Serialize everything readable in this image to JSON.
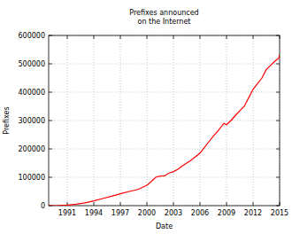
{
  "chart_data": {
    "type": "line",
    "title": "Prefixes announced\non the Internet",
    "x_label": "Date",
    "y_label": "Prefixes",
    "color": "#ff0000",
    "grid": true,
    "x": [
      1988.9,
      1990,
      1991,
      1992,
      1993,
      1994,
      1995,
      1996,
      1997,
      1998,
      1999,
      2000,
      2000.5,
      2001,
      2001.5,
      2002,
      2002.5,
      2003,
      2003.5,
      2004,
      2005,
      2006,
      2006.5,
      2007,
      2007.5,
      2008,
      2008.7,
      2009,
      2009.5,
      2010,
      2010.5,
      2011,
      2011.5,
      2012,
      2012.5,
      2013,
      2013.5,
      2014,
      2014.5,
      2014.9,
      2015
    ],
    "values": [
      0,
      500,
      2000,
      5000,
      10000,
      17000,
      25000,
      33000,
      42000,
      50000,
      57000,
      72000,
      85000,
      100000,
      104000,
      105000,
      115000,
      120000,
      128000,
      140000,
      160000,
      185000,
      205000,
      225000,
      245000,
      262000,
      290000,
      285000,
      300000,
      318000,
      335000,
      350000,
      380000,
      410000,
      430000,
      450000,
      480000,
      495000,
      510000,
      520000,
      532000
    ],
    "xlim": [
      1988.9,
      2015
    ],
    "ylim": [
      0,
      600000
    ],
    "xticks": [
      1991,
      1994,
      1997,
      2000,
      2003,
      2006,
      2009,
      2012,
      2015
    ],
    "yticks": [
      0,
      100000,
      200000,
      300000,
      400000,
      500000,
      600000
    ]
  }
}
